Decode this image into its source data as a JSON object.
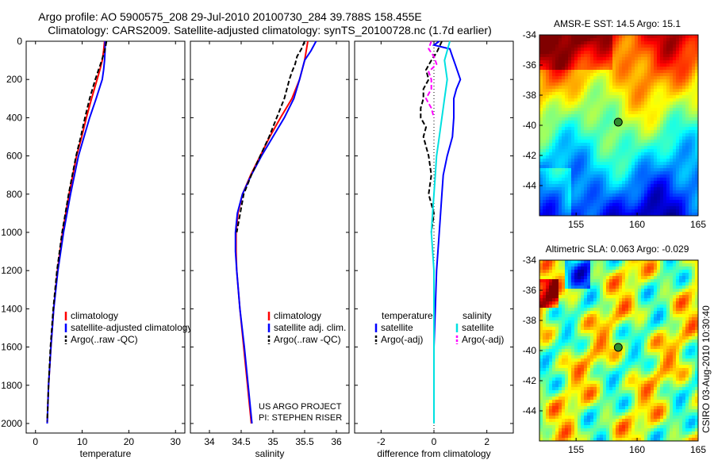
{
  "title_line1": "Argo profile: AO 5900575_208 29-Jul-2010 20100730_284 39.788S 158.455E",
  "title_line2": "Climatology: CARS2009. Satellite-adjusted climatology: synTS_20100728.nc (1.7d earlier)",
  "side_label": "CSIRO 03-Aug-2010 10:30:40",
  "project_line1": "US ARGO PROJECT",
  "project_line2": "PI: STEPHEN RISER",
  "colors": {
    "clim": "#ff0000",
    "sat": "#0000ff",
    "argo": "#000000",
    "sal_sat": "#00e0e0",
    "sal_argo": "#ff00ff"
  },
  "chart_data": [
    {
      "type": "line",
      "id": "temperature",
      "xlabel": "temperature",
      "ylabel": "",
      "xlim": [
        -2,
        32
      ],
      "ylim": [
        2050,
        0
      ],
      "xticks": [
        "0",
        "10",
        "20",
        "30"
      ],
      "xtick_values": [
        0,
        10,
        20,
        30
      ],
      "yticks": [
        "0",
        "200",
        "400",
        "600",
        "800",
        "1000",
        "1200",
        "1400",
        "1600",
        "1800",
        "2000"
      ],
      "ytick_values": [
        0,
        200,
        400,
        600,
        800,
        1000,
        1200,
        1400,
        1600,
        1800,
        2000
      ],
      "legend": [
        "climatology",
        "satellite-adjusted climatology",
        "Argo(..raw -QC)"
      ],
      "series": [
        {
          "name": "climatology",
          "color": "#ff0000",
          "style": "solid",
          "depth": [
            0,
            50,
            100,
            150,
            200,
            300,
            400,
            500,
            600,
            800,
            1000,
            1200,
            1400,
            1600,
            1800,
            2000
          ],
          "values": [
            14.8,
            14.6,
            14.3,
            13.8,
            13.2,
            12.0,
            10.9,
            9.9,
            8.8,
            7.2,
            5.8,
            4.7,
            3.9,
            3.3,
            2.8,
            2.5
          ]
        },
        {
          "name": "satellite-adjusted climatology",
          "color": "#0000ff",
          "style": "solid",
          "depth": [
            0,
            50,
            100,
            150,
            200,
            300,
            400,
            500,
            600,
            800,
            1000,
            1200,
            1400,
            1600,
            1800,
            2000
          ],
          "values": [
            14.9,
            14.9,
            14.8,
            14.6,
            14.3,
            13.0,
            11.6,
            10.4,
            9.2,
            7.5,
            6.0,
            4.8,
            3.9,
            3.3,
            2.8,
            2.5
          ]
        },
        {
          "name": "Argo(..raw -QC)",
          "color": "#000000",
          "style": "dashed",
          "depth": [
            0,
            30,
            60,
            100,
            150,
            200,
            300,
            400,
            500,
            600,
            800,
            1000,
            1200,
            1400,
            1600,
            1800,
            1990
          ],
          "values": [
            15.2,
            15.0,
            14.7,
            14.2,
            13.5,
            12.8,
            11.6,
            10.6,
            9.7,
            8.7,
            7.1,
            5.7,
            4.6,
            3.8,
            3.2,
            2.8,
            2.5
          ]
        }
      ]
    },
    {
      "type": "line",
      "id": "salinity",
      "xlabel": "salinity",
      "xlim": [
        33.7,
        36.2
      ],
      "ylim": [
        2050,
        0
      ],
      "xticks": [
        "34",
        "34.5",
        "35",
        "35.5",
        "36"
      ],
      "xtick_values": [
        34,
        34.5,
        35,
        35.5,
        36
      ],
      "legend": [
        "climatology",
        "satellite adj. clim.",
        "Argo(..raw -QC)"
      ],
      "series": [
        {
          "name": "climatology",
          "color": "#ff0000",
          "style": "solid",
          "depth": [
            0,
            100,
            200,
            300,
            400,
            500,
            600,
            700,
            800,
            900,
            1000,
            1100,
            1200,
            1400,
            1600,
            1800,
            2000
          ],
          "values": [
            35.55,
            35.5,
            35.42,
            35.3,
            35.12,
            34.95,
            34.8,
            34.65,
            34.52,
            34.45,
            34.42,
            34.42,
            34.43,
            34.48,
            34.54,
            34.6,
            34.66
          ]
        },
        {
          "name": "satellite adj. clim.",
          "color": "#0000ff",
          "style": "solid",
          "depth": [
            0,
            50,
            100,
            200,
            300,
            400,
            500,
            600,
            700,
            800,
            900,
            1000,
            1100,
            1200,
            1400,
            1600,
            1800,
            2000
          ],
          "values": [
            35.68,
            35.6,
            35.5,
            35.42,
            35.33,
            35.18,
            35.0,
            34.82,
            34.66,
            34.52,
            34.44,
            34.41,
            34.41,
            34.43,
            34.48,
            34.55,
            34.61,
            34.67
          ]
        },
        {
          "name": "Argo(..raw -QC)",
          "color": "#000000",
          "style": "dashed",
          "depth": [
            0,
            40,
            80,
            120,
            160,
            200,
            300,
            400,
            500,
            600,
            700,
            800,
            1000
          ],
          "values": [
            35.5,
            35.45,
            35.38,
            35.35,
            35.3,
            35.26,
            35.18,
            35.06,
            34.94,
            34.8,
            34.66,
            34.54,
            34.43
          ]
        }
      ]
    },
    {
      "type": "line",
      "id": "difference",
      "xlabel": "difference from climatology",
      "xlim": [
        -3,
        3
      ],
      "ylim": [
        2050,
        0
      ],
      "xticks": [
        "-2",
        "0",
        "2"
      ],
      "xtick_values": [
        -2,
        0,
        2
      ],
      "legend_temp_title": "temperature",
      "legend_sal_title": "salinity",
      "legend": [
        "satellite",
        "Argo(-adj)",
        "satellite",
        "Argo(-adj)"
      ],
      "series": [
        {
          "name": "temperature satellite",
          "color": "#0000ff",
          "style": "solid",
          "depth": [
            0,
            20,
            40,
            80,
            120,
            160,
            200,
            250,
            300,
            400,
            500,
            600,
            700,
            800,
            1000,
            1200,
            1400,
            1600,
            1800,
            2000
          ],
          "values": [
            0.2,
            0.0,
            0.6,
            0.7,
            0.8,
            0.9,
            1.0,
            0.85,
            0.75,
            0.75,
            0.7,
            0.5,
            0.35,
            0.3,
            0.2,
            0.1,
            0.05,
            0.0,
            0.0,
            0.0
          ]
        },
        {
          "name": "temperature Argo(-adj)",
          "color": "#000000",
          "style": "dashed",
          "depth": [
            0,
            30,
            60,
            100,
            150,
            200,
            250,
            300,
            350,
            400,
            450,
            500,
            600,
            700,
            800,
            900,
            1000
          ],
          "values": [
            0.3,
            0.2,
            0.1,
            -0.1,
            -0.3,
            -0.2,
            -0.4,
            -0.4,
            -0.5,
            -0.5,
            -0.3,
            -0.4,
            -0.2,
            -0.1,
            -0.2,
            0.0,
            -0.1
          ]
        },
        {
          "name": "salinity satellite",
          "color": "#00e0e0",
          "style": "solid",
          "depth": [
            0,
            50,
            100,
            200,
            300,
            400,
            500,
            600,
            700,
            800,
            900,
            1000,
            1200,
            1400,
            1600,
            1800,
            2000
          ],
          "values": [
            0.6,
            0.5,
            0.4,
            0.5,
            0.4,
            0.3,
            0.2,
            0.1,
            0.05,
            0.0,
            -0.05,
            -0.1,
            0.0,
            0.0,
            0.0,
            0.0,
            0.0
          ]
        },
        {
          "name": "salinity Argo(-adj)",
          "color": "#ff00ff",
          "style": "dashed",
          "depth": [
            0,
            40,
            80,
            120,
            160,
            200,
            250,
            300,
            350,
            400
          ],
          "values": [
            -0.1,
            -0.2,
            0.0,
            0.1,
            -0.2,
            -0.1,
            -0.1,
            -0.3,
            -0.1,
            0.0
          ]
        }
      ]
    },
    {
      "type": "heatmap",
      "id": "sst-map",
      "title": "AMSR-E SST: 14.5 Argo: 15.1",
      "xlim": [
        152,
        165
      ],
      "ylim": [
        -46,
        -34
      ],
      "xticks": [
        "155",
        "160",
        "165"
      ],
      "xtick_values": [
        155,
        160,
        165
      ],
      "yticks": [
        "-34",
        "-36",
        "-38",
        "-40",
        "-42",
        "-44"
      ],
      "ytick_values": [
        -34,
        -36,
        -38,
        -40,
        -42,
        -44
      ],
      "marker": {
        "lon": 158.455,
        "lat": -39.788
      }
    },
    {
      "type": "heatmap",
      "id": "sla-map",
      "title": "Altimetric SLA: 0.063 Argo: -0.029",
      "xlim": [
        152,
        165
      ],
      "ylim": [
        -46,
        -34
      ],
      "xticks": [
        "155",
        "160",
        "165"
      ],
      "xtick_values": [
        155,
        160,
        165
      ],
      "yticks": [
        "-34",
        "-36",
        "-38",
        "-40",
        "-42",
        "-44"
      ],
      "ytick_values": [
        -34,
        -36,
        -38,
        -40,
        -42,
        -44
      ],
      "marker": {
        "lon": 158.455,
        "lat": -39.788
      }
    }
  ]
}
